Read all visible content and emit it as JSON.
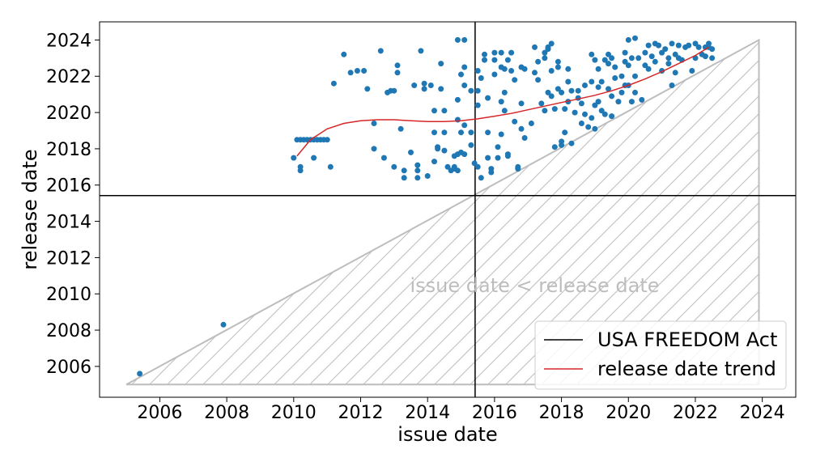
{
  "chart_data": {
    "type": "scatter",
    "xlabel": "issue date",
    "ylabel": "release date",
    "xlim": [
      2004.2,
      2025.0
    ],
    "ylim": [
      2004.3,
      2025.0
    ],
    "x_ticks": [
      2006,
      2008,
      2010,
      2012,
      2014,
      2016,
      2018,
      2020,
      2022,
      2024
    ],
    "y_ticks": [
      2006,
      2008,
      2010,
      2012,
      2014,
      2016,
      2018,
      2020,
      2022,
      2024
    ],
    "grid": false,
    "legend_position": "bottom-right",
    "colors": {
      "points": "#1f77b4",
      "trend": "#d62728",
      "event_line": "#000000",
      "region": "#bdbdbd"
    },
    "event_line": {
      "name": "USA FREEDOM Act",
      "x": 2015.42,
      "y": 2015.42
    },
    "region": {
      "label": "issue date < release date",
      "polygon": [
        [
          2005.0,
          2005.0
        ],
        [
          2023.9,
          2024.0
        ],
        [
          2023.9,
          2005.0
        ]
      ]
    },
    "trend": {
      "name": "release date trend",
      "x": [
        2010.1,
        2010.5,
        2011.0,
        2011.5,
        2012.0,
        2012.5,
        2013.0,
        2013.5,
        2014.0,
        2014.5,
        2015.0,
        2015.5,
        2016.0,
        2016.5,
        2017.0,
        2017.5,
        2018.0,
        2018.5,
        2019.0,
        2019.5,
        2020.0,
        2020.5,
        2021.0,
        2021.5,
        2022.0,
        2022.4
      ],
      "y": [
        2017.6,
        2018.5,
        2019.1,
        2019.4,
        2019.55,
        2019.6,
        2019.6,
        2019.55,
        2019.5,
        2019.5,
        2019.55,
        2019.65,
        2019.8,
        2019.95,
        2020.15,
        2020.35,
        2020.55,
        2020.75,
        2020.95,
        2021.2,
        2021.5,
        2021.85,
        2022.25,
        2022.7,
        2023.15,
        2023.6
      ]
    },
    "points": [
      [
        2005.4,
        2005.6
      ],
      [
        2007.9,
        2008.3
      ],
      [
        2010.0,
        2017.5
      ],
      [
        2010.1,
        2018.5
      ],
      [
        2010.2,
        2018.5
      ],
      [
        2010.3,
        2018.5
      ],
      [
        2010.4,
        2018.5
      ],
      [
        2010.5,
        2018.5
      ],
      [
        2010.6,
        2018.5
      ],
      [
        2010.7,
        2018.5
      ],
      [
        2010.8,
        2018.5
      ],
      [
        2010.9,
        2018.5
      ],
      [
        2011.0,
        2018.5
      ],
      [
        2010.2,
        2017.0
      ],
      [
        2010.2,
        2016.8
      ],
      [
        2010.6,
        2017.5
      ],
      [
        2011.1,
        2017.0
      ],
      [
        2011.2,
        2021.6
      ],
      [
        2011.5,
        2023.2
      ],
      [
        2011.7,
        2022.2
      ],
      [
        2011.9,
        2022.3
      ],
      [
        2012.1,
        2022.3
      ],
      [
        2012.2,
        2021.3
      ],
      [
        2012.4,
        2019.4
      ],
      [
        2012.4,
        2018.0
      ],
      [
        2012.6,
        2023.4
      ],
      [
        2012.7,
        2017.5
      ],
      [
        2012.8,
        2021.1
      ],
      [
        2012.9,
        2021.2
      ],
      [
        2013.0,
        2017.0
      ],
      [
        2013.0,
        2021.2
      ],
      [
        2013.1,
        2022.6
      ],
      [
        2013.1,
        2022.2
      ],
      [
        2013.2,
        2019.1
      ],
      [
        2013.3,
        2016.8
      ],
      [
        2013.3,
        2016.4
      ],
      [
        2013.5,
        2017.8
      ],
      [
        2013.6,
        2021.5
      ],
      [
        2013.7,
        2017.1
      ],
      [
        2013.7,
        2016.8
      ],
      [
        2013.7,
        2016.4
      ],
      [
        2013.8,
        2023.4
      ],
      [
        2013.9,
        2021.3
      ],
      [
        2013.9,
        2021.6
      ],
      [
        2014.0,
        2016.5
      ],
      [
        2014.1,
        2021.5
      ],
      [
        2014.2,
        2020.1
      ],
      [
        2014.2,
        2018.9
      ],
      [
        2014.2,
        2017.3
      ],
      [
        2014.3,
        2018.1
      ],
      [
        2014.3,
        2018.0
      ],
      [
        2014.4,
        2022.7
      ],
      [
        2014.4,
        2021.3
      ],
      [
        2014.5,
        2020.1
      ],
      [
        2014.5,
        2018.9
      ],
      [
        2014.5,
        2017.9
      ],
      [
        2014.6,
        2017.0
      ],
      [
        2014.7,
        2016.8
      ],
      [
        2014.8,
        2017.6
      ],
      [
        2014.8,
        2017.0
      ],
      [
        2014.8,
        2016.9
      ],
      [
        2014.9,
        2024.0
      ],
      [
        2014.9,
        2020.7
      ],
      [
        2014.9,
        2019.6
      ],
      [
        2014.9,
        2017.7
      ],
      [
        2014.9,
        2016.8
      ],
      [
        2015.0,
        2022.1
      ],
      [
        2015.0,
        2018.9
      ],
      [
        2015.0,
        2017.8
      ],
      [
        2015.1,
        2024.0
      ],
      [
        2015.1,
        2022.5
      ],
      [
        2015.1,
        2021.5
      ],
      [
        2015.1,
        2019.3
      ],
      [
        2015.1,
        2017.7
      ],
      [
        2015.3,
        2021.2
      ],
      [
        2015.3,
        2018.9
      ],
      [
        2015.3,
        2018.2
      ],
      [
        2015.4,
        2017.2
      ],
      [
        2015.5,
        2017.0
      ],
      [
        2015.5,
        2021.2
      ],
      [
        2015.5,
        2022.3
      ],
      [
        2015.5,
        2020.4
      ],
      [
        2015.6,
        2021.9
      ],
      [
        2015.6,
        2016.4
      ],
      [
        2015.7,
        2023.2
      ],
      [
        2015.7,
        2022.9
      ],
      [
        2015.8,
        2020.8
      ],
      [
        2015.8,
        2018.9
      ],
      [
        2015.8,
        2017.5
      ],
      [
        2015.9,
        2016.7
      ],
      [
        2015.9,
        2016.9
      ],
      [
        2016.0,
        2023.3
      ],
      [
        2016.0,
        2022.9
      ],
      [
        2016.0,
        2022.1
      ],
      [
        2016.1,
        2018.1
      ],
      [
        2016.1,
        2017.5
      ],
      [
        2016.2,
        2022.5
      ],
      [
        2016.2,
        2023.3
      ],
      [
        2016.2,
        2020.6
      ],
      [
        2016.2,
        2018.8
      ],
      [
        2016.3,
        2022.4
      ],
      [
        2016.3,
        2021.1
      ],
      [
        2016.3,
        2020.1
      ],
      [
        2016.4,
        2022.9
      ],
      [
        2016.4,
        2017.7
      ],
      [
        2016.4,
        2017.6
      ],
      [
        2016.5,
        2023.3
      ],
      [
        2016.5,
        2022.3
      ],
      [
        2016.6,
        2021.8
      ],
      [
        2016.6,
        2019.5
      ],
      [
        2016.7,
        2017.0
      ],
      [
        2016.7,
        2016.9
      ],
      [
        2016.8,
        2022.5
      ],
      [
        2016.8,
        2020.5
      ],
      [
        2016.8,
        2019.1
      ],
      [
        2016.9,
        2022.4
      ],
      [
        2016.9,
        2018.6
      ],
      [
        2017.1,
        2019.4
      ],
      [
        2017.2,
        2022.2
      ],
      [
        2017.2,
        2023.6
      ],
      [
        2017.3,
        2022.8
      ],
      [
        2017.3,
        2021.8
      ],
      [
        2017.4,
        2020.5
      ],
      [
        2017.5,
        2023.3
      ],
      [
        2017.5,
        2023.0
      ],
      [
        2017.5,
        2020.1
      ],
      [
        2017.6,
        2023.5
      ],
      [
        2017.6,
        2023.6
      ],
      [
        2017.6,
        2021.1
      ],
      [
        2017.7,
        2023.8
      ],
      [
        2017.7,
        2022.3
      ],
      [
        2017.7,
        2020.9
      ],
      [
        2017.8,
        2020.2
      ],
      [
        2017.8,
        2018.1
      ],
      [
        2017.9,
        2022.5
      ],
      [
        2017.9,
        2022.8
      ],
      [
        2017.9,
        2021.3
      ],
      [
        2018.0,
        2021.1
      ],
      [
        2018.0,
        2018.4
      ],
      [
        2018.0,
        2018.2
      ],
      [
        2018.1,
        2020.2
      ],
      [
        2018.1,
        2018.9
      ],
      [
        2018.2,
        2022.4
      ],
      [
        2018.2,
        2021.7
      ],
      [
        2018.2,
        2020.6
      ],
      [
        2018.3,
        2021.2
      ],
      [
        2018.3,
        2018.3
      ],
      [
        2018.4,
        2020.0
      ],
      [
        2018.5,
        2021.2
      ],
      [
        2018.5,
        2020.8
      ],
      [
        2018.6,
        2020.5
      ],
      [
        2018.6,
        2019.4
      ],
      [
        2018.7,
        2021.5
      ],
      [
        2018.7,
        2019.9
      ],
      [
        2018.8,
        2019.2
      ],
      [
        2018.9,
        2023.2
      ],
      [
        2018.9,
        2021.7
      ],
      [
        2018.9,
        2019.7
      ],
      [
        2019.0,
        2022.9
      ],
      [
        2019.0,
        2020.4
      ],
      [
        2019.0,
        2019.1
      ],
      [
        2019.1,
        2022.4
      ],
      [
        2019.1,
        2021.4
      ],
      [
        2019.1,
        2020.6
      ],
      [
        2019.2,
        2021.7
      ],
      [
        2019.2,
        2020.1
      ],
      [
        2019.3,
        2022.9
      ],
      [
        2019.3,
        2019.9
      ],
      [
        2019.4,
        2023.2
      ],
      [
        2019.4,
        2022.7
      ],
      [
        2019.4,
        2021.3
      ],
      [
        2019.5,
        2023.0
      ],
      [
        2019.5,
        2020.9
      ],
      [
        2019.5,
        2019.8
      ],
      [
        2019.6,
        2022.5
      ],
      [
        2019.6,
        2021.9
      ],
      [
        2019.7,
        2020.6
      ],
      [
        2019.8,
        2022.0
      ],
      [
        2019.8,
        2021.1
      ],
      [
        2019.9,
        2023.3
      ],
      [
        2019.9,
        2022.8
      ],
      [
        2019.9,
        2021.5
      ],
      [
        2020.0,
        2024.0
      ],
      [
        2020.0,
        2022.6
      ],
      [
        2020.0,
        2021.5
      ],
      [
        2020.1,
        2020.6
      ],
      [
        2020.1,
        2023.0
      ],
      [
        2020.2,
        2024.1
      ],
      [
        2020.2,
        2022.0
      ],
      [
        2020.2,
        2021.1
      ],
      [
        2020.3,
        2023.0
      ],
      [
        2020.4,
        2020.7
      ],
      [
        2020.5,
        2023.3
      ],
      [
        2020.5,
        2022.6
      ],
      [
        2020.6,
        2023.7
      ],
      [
        2020.6,
        2022.4
      ],
      [
        2020.7,
        2023.1
      ],
      [
        2020.8,
        2023.8
      ],
      [
        2020.8,
        2022.8
      ],
      [
        2020.9,
        2023.7
      ],
      [
        2021.0,
        2023.3
      ],
      [
        2021.0,
        2022.3
      ],
      [
        2021.1,
        2023.5
      ],
      [
        2021.2,
        2023.0
      ],
      [
        2021.2,
        2022.7
      ],
      [
        2021.3,
        2023.8
      ],
      [
        2021.3,
        2021.5
      ],
      [
        2021.4,
        2023.2
      ],
      [
        2021.4,
        2022.2
      ],
      [
        2021.5,
        2023.7
      ],
      [
        2021.5,
        2023.0
      ],
      [
        2021.6,
        2022.9
      ],
      [
        2021.7,
        2023.6
      ],
      [
        2021.8,
        2023.7
      ],
      [
        2021.9,
        2022.3
      ],
      [
        2022.0,
        2023.8
      ],
      [
        2022.0,
        2023.0
      ],
      [
        2022.1,
        2023.6
      ],
      [
        2022.2,
        2023.2
      ],
      [
        2022.3,
        2023.6
      ],
      [
        2022.3,
        2023.1
      ],
      [
        2022.4,
        2023.8
      ],
      [
        2022.4,
        2023.6
      ],
      [
        2022.5,
        2023.5
      ],
      [
        2022.5,
        2023.0
      ]
    ]
  }
}
